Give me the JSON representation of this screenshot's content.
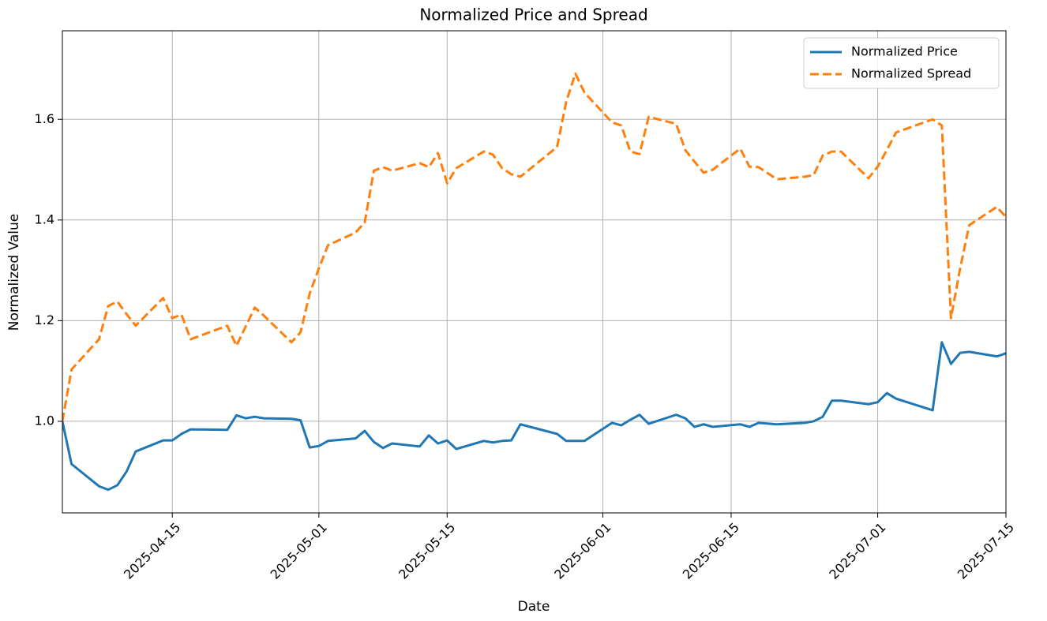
{
  "chart_data": {
    "type": "line",
    "title": "Normalized Price and Spread",
    "x_label": "Date",
    "y_label": "Normalized Value",
    "x": [
      "2025-04-03",
      "2025-04-04",
      "2025-04-07",
      "2025-04-08",
      "2025-04-09",
      "2025-04-10",
      "2025-04-11",
      "2025-04-14",
      "2025-04-15",
      "2025-04-16",
      "2025-04-17",
      "2025-04-21",
      "2025-04-22",
      "2025-04-23",
      "2025-04-24",
      "2025-04-25",
      "2025-04-28",
      "2025-04-29",
      "2025-04-30",
      "2025-05-01",
      "2025-05-02",
      "2025-05-05",
      "2025-05-06",
      "2025-05-07",
      "2025-05-08",
      "2025-05-09",
      "2025-05-12",
      "2025-05-13",
      "2025-05-14",
      "2025-05-15",
      "2025-05-16",
      "2025-05-19",
      "2025-05-20",
      "2025-05-21",
      "2025-05-22",
      "2025-05-23",
      "2025-05-27",
      "2025-05-28",
      "2025-05-29",
      "2025-05-30",
      "2025-06-02",
      "2025-06-03",
      "2025-06-04",
      "2025-06-05",
      "2025-06-06",
      "2025-06-09",
      "2025-06-10",
      "2025-06-11",
      "2025-06-12",
      "2025-06-13",
      "2025-06-16",
      "2025-06-17",
      "2025-06-18",
      "2025-06-20",
      "2025-06-23",
      "2025-06-24",
      "2025-06-25",
      "2025-06-26",
      "2025-06-27",
      "2025-06-30",
      "2025-07-01",
      "2025-07-02",
      "2025-07-03",
      "2025-07-07",
      "2025-07-08",
      "2025-07-09",
      "2025-07-10",
      "2025-07-11",
      "2025-07-14",
      "2025-07-15"
    ],
    "series": [
      {
        "name": "Normalized Price",
        "color": "#1f77b4",
        "linestyle": "solid",
        "values": [
          1.0,
          0.915,
          0.871,
          0.864,
          0.873,
          0.9,
          0.94,
          0.962,
          0.962,
          0.975,
          0.984,
          0.983,
          1.012,
          1.006,
          1.009,
          1.006,
          1.005,
          1.002,
          0.948,
          0.951,
          0.961,
          0.966,
          0.981,
          0.959,
          0.947,
          0.956,
          0.95,
          0.972,
          0.956,
          0.962,
          0.945,
          0.961,
          0.958,
          0.961,
          0.962,
          0.994,
          0.975,
          0.961,
          0.961,
          0.961,
          0.997,
          0.992,
          1.003,
          1.013,
          0.995,
          1.013,
          1.006,
          0.989,
          0.994,
          0.989,
          0.994,
          0.989,
          0.997,
          0.994,
          0.997,
          1.0,
          1.009,
          1.041,
          1.041,
          1.034,
          1.038,
          1.056,
          1.045,
          1.022,
          1.157,
          1.114,
          1.136,
          1.138,
          1.129,
          1.135
        ]
      },
      {
        "name": "Normalized Spread",
        "color": "#ff7f0e",
        "linestyle": "dashed",
        "values": [
          1.0,
          1.103,
          1.163,
          1.229,
          1.238,
          1.213,
          1.19,
          1.245,
          1.205,
          1.212,
          1.163,
          1.19,
          1.15,
          1.188,
          1.226,
          1.21,
          1.157,
          1.177,
          1.254,
          1.304,
          1.35,
          1.375,
          1.395,
          1.498,
          1.505,
          1.498,
          1.513,
          1.505,
          1.533,
          1.473,
          1.503,
          1.536,
          1.53,
          1.503,
          1.491,
          1.486,
          1.545,
          1.635,
          1.691,
          1.653,
          1.594,
          1.588,
          1.536,
          1.531,
          1.605,
          1.591,
          1.539,
          1.516,
          1.494,
          1.5,
          1.542,
          1.506,
          1.505,
          1.481,
          1.486,
          1.489,
          1.528,
          1.536,
          1.536,
          1.483,
          1.506,
          1.539,
          1.574,
          1.6,
          1.588,
          1.205,
          1.304,
          1.39,
          1.426,
          1.406
        ]
      }
    ],
    "xlim": [
      "2025-04-03",
      "2025-07-15"
    ],
    "xticks": [
      "2025-04-15",
      "2025-05-01",
      "2025-05-15",
      "2025-06-01",
      "2025-06-15",
      "2025-07-01",
      "2025-07-15"
    ],
    "ylim": [
      0.818,
      1.776
    ],
    "yticks": [
      {
        "value": 1,
        "label": "1.0"
      },
      1.2,
      1.4,
      1.6
    ],
    "grid": true,
    "legend": "upper right"
  }
}
